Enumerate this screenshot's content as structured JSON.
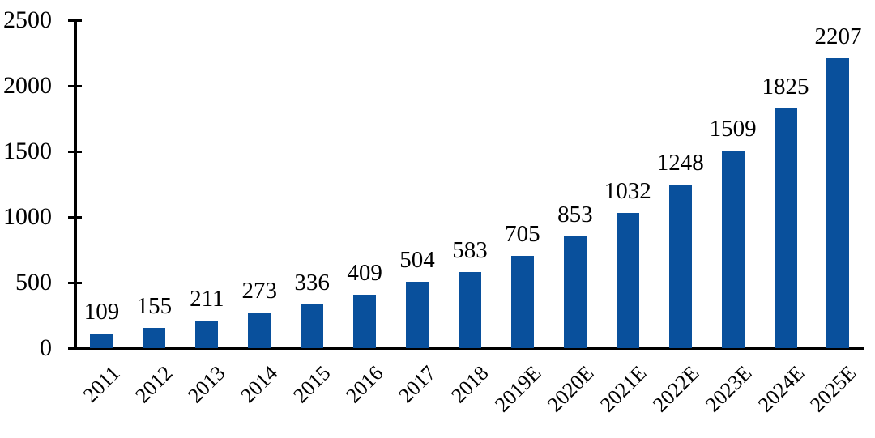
{
  "chart_data": {
    "type": "bar",
    "title": "",
    "xlabel": "",
    "ylabel": "",
    "categories": [
      "2011",
      "2012",
      "2013",
      "2014",
      "2015",
      "2016",
      "2017",
      "2018",
      "2019E",
      "2020E",
      "2021E",
      "2022E",
      "2023E",
      "2024E",
      "2025E"
    ],
    "values": [
      109,
      155,
      211,
      273,
      336,
      409,
      504,
      583,
      705,
      853,
      1032,
      1248,
      1509,
      1825,
      2207
    ],
    "data_labels_visible": true,
    "ylim": [
      0,
      2500
    ],
    "yticks": [
      0,
      500,
      1000,
      1500,
      2000,
      2500
    ],
    "grid": false,
    "legend_position": "none",
    "x_label_rotation_degrees": 45,
    "colors": {
      "bar": "#09509C",
      "axis": "#000000",
      "text": "#000000",
      "background": "#ffffff"
    }
  }
}
